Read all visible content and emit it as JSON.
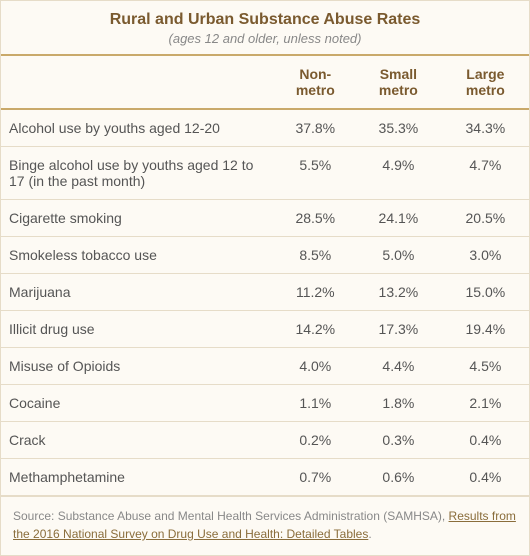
{
  "title": "Rural and Urban Substance Abuse Rates",
  "subtitle": "(ages 12 and older, unless noted)",
  "columns": [
    "",
    "Non-metro",
    "Small metro",
    "Large metro"
  ],
  "rows": [
    {
      "label": "Alcohol use by youths aged 12-20",
      "non_metro": "37.8%",
      "small_metro": "35.3%",
      "large_metro": "34.3%"
    },
    {
      "label": "Binge alcohol use by youths aged 12 to 17 (in the past month)",
      "non_metro": "5.5%",
      "small_metro": "4.9%",
      "large_metro": "4.7%"
    },
    {
      "label": "Cigarette smoking",
      "non_metro": "28.5%",
      "small_metro": "24.1%",
      "large_metro": "20.5%"
    },
    {
      "label": "Smokeless tobacco use",
      "non_metro": "8.5%",
      "small_metro": "5.0%",
      "large_metro": "3.0%"
    },
    {
      "label": "Marijuana",
      "non_metro": "11.2%",
      "small_metro": "13.2%",
      "large_metro": "15.0%"
    },
    {
      "label": "Illicit drug use",
      "non_metro": "14.2%",
      "small_metro": "17.3%",
      "large_metro": "19.4%"
    },
    {
      "label": "Misuse of Opioids",
      "non_metro": "4.0%",
      "small_metro": "4.4%",
      "large_metro": "4.5%"
    },
    {
      "label": "Cocaine",
      "non_metro": "1.1%",
      "small_metro": "1.8%",
      "large_metro": "2.1%"
    },
    {
      "label": "Crack",
      "non_metro": "0.2%",
      "small_metro": "0.3%",
      "large_metro": "0.4%"
    },
    {
      "label": "Methamphetamine",
      "non_metro": "0.7%",
      "small_metro": "0.6%",
      "large_metro": "0.4%"
    }
  ],
  "footer_prefix": "Source: Substance Abuse and Mental Health Services Administration (SAMHSA), ",
  "footer_link_text": "Results from the 2016 National Survey on Drug Use and Health: Detailed Tables",
  "footer_suffix": ".",
  "colors": {
    "background": "#fdfaf4",
    "heading_text": "#7a5a2f",
    "body_text": "#555555",
    "muted_text": "#888888",
    "border_strong": "#c9a96a",
    "border_light": "#e6dcc8",
    "link": "#8a6d3b"
  }
}
